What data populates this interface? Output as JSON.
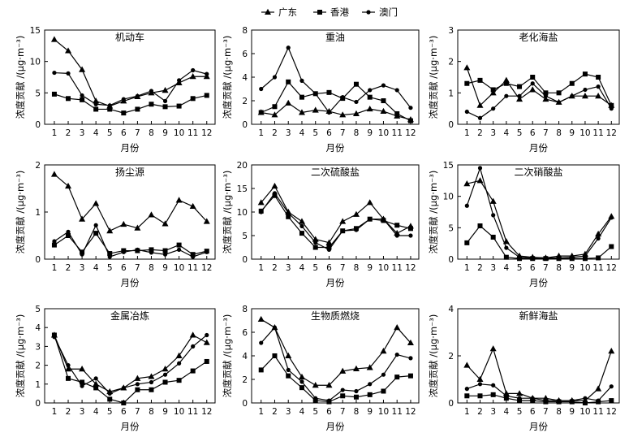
{
  "legend": [
    {
      "name": "广东",
      "marker": "triangle"
    },
    {
      "name": "香港",
      "marker": "square"
    },
    {
      "name": "澳门",
      "marker": "circle"
    }
  ],
  "chart_data": [
    {
      "type": "line",
      "title": "机动车",
      "xlabel": "月份",
      "ylabel": "浓度贡献 /(μg·m⁻³)",
      "ylim": [
        0,
        15
      ],
      "yticks": [
        0,
        5,
        10,
        15
      ],
      "x": [
        1,
        2,
        3,
        4,
        5,
        6,
        7,
        8,
        9,
        10,
        11,
        12
      ],
      "series": [
        {
          "name": "广东",
          "values": [
            13.5,
            11.7,
            8.7,
            3.7,
            2.9,
            3.7,
            4.4,
            5.0,
            5.4,
            6.6,
            7.6,
            7.6
          ]
        },
        {
          "name": "香港",
          "values": [
            4.8,
            4.1,
            3.9,
            2.4,
            2.4,
            1.8,
            2.4,
            3.2,
            2.8,
            2.9,
            4.1,
            4.6
          ]
        },
        {
          "name": "澳门",
          "values": [
            8.2,
            8.1,
            4.6,
            3.2,
            3.0,
            4.0,
            4.5,
            5.3,
            3.7,
            7.0,
            8.6,
            8.0
          ]
        }
      ]
    },
    {
      "type": "line",
      "title": "重油",
      "xlabel": "月份",
      "ylabel": "浓度贡献 /(μg·m⁻³)",
      "ylim": [
        0,
        8
      ],
      "yticks": [
        0,
        2,
        4,
        6,
        8
      ],
      "x": [
        1,
        2,
        3,
        4,
        5,
        6,
        7,
        8,
        9,
        10,
        11,
        12
      ],
      "series": [
        {
          "name": "广东",
          "values": [
            1.0,
            0.8,
            1.8,
            1.0,
            1.2,
            1.1,
            0.8,
            0.9,
            1.3,
            1.1,
            0.7,
            0.4
          ]
        },
        {
          "name": "香港",
          "values": [
            1.0,
            1.5,
            3.6,
            2.3,
            2.6,
            2.7,
            2.2,
            3.4,
            2.3,
            2.0,
            0.9,
            0.3
          ]
        },
        {
          "name": "澳门",
          "values": [
            3.0,
            4.0,
            6.5,
            3.7,
            2.6,
            1.0,
            2.3,
            1.9,
            2.9,
            3.3,
            2.9,
            1.4
          ]
        }
      ]
    },
    {
      "type": "line",
      "title": "老化海盐",
      "xlabel": "月份",
      "ylabel": "浓度贡献 /(μg·m⁻³)",
      "ylim": [
        0,
        3
      ],
      "yticks": [
        0,
        1,
        2,
        3
      ],
      "x": [
        1,
        2,
        3,
        4,
        5,
        6,
        7,
        8,
        9,
        10,
        11,
        12
      ],
      "series": [
        {
          "name": "广东",
          "values": [
            1.8,
            0.6,
            1.0,
            1.4,
            0.8,
            1.1,
            0.8,
            0.7,
            0.9,
            0.9,
            0.9,
            0.6
          ]
        },
        {
          "name": "香港",
          "values": [
            1.3,
            1.4,
            1.1,
            1.3,
            1.2,
            1.5,
            1.0,
            1.0,
            1.3,
            1.6,
            1.5,
            0.6
          ]
        },
        {
          "name": "澳门",
          "values": [
            0.4,
            0.2,
            0.5,
            0.9,
            0.9,
            1.3,
            0.9,
            0.7,
            0.9,
            1.1,
            1.2,
            0.5
          ]
        }
      ]
    },
    {
      "type": "line",
      "title": "扬尘源",
      "xlabel": "月份",
      "ylabel": "浓度贡献 /(μg·m⁻³)",
      "ylim": [
        0,
        2
      ],
      "yticks": [
        0,
        1,
        2
      ],
      "x": [
        1,
        2,
        3,
        4,
        5,
        6,
        7,
        8,
        9,
        10,
        11,
        12
      ],
      "series": [
        {
          "name": "广东",
          "values": [
            1.8,
            1.55,
            0.85,
            1.18,
            0.6,
            0.74,
            0.66,
            0.94,
            0.75,
            1.25,
            1.12,
            0.8
          ]
        },
        {
          "name": "香港",
          "values": [
            0.3,
            0.5,
            0.15,
            0.55,
            0.12,
            0.18,
            0.18,
            0.2,
            0.18,
            0.3,
            0.1,
            0.17
          ]
        },
        {
          "name": "澳门",
          "values": [
            0.38,
            0.58,
            0.1,
            0.72,
            0.05,
            0.15,
            0.2,
            0.14,
            0.1,
            0.2,
            0.05,
            0.15
          ]
        }
      ]
    },
    {
      "type": "line",
      "title": "二次硫酸盐",
      "xlabel": "月份",
      "ylabel": "浓度贡献 /(μg·m⁻³)",
      "ylim": [
        0,
        20
      ],
      "yticks": [
        0,
        5,
        10,
        15,
        20
      ],
      "x": [
        1,
        2,
        3,
        4,
        5,
        6,
        7,
        8,
        9,
        10,
        11,
        12
      ],
      "series": [
        {
          "name": "广东",
          "values": [
            12.0,
            15.5,
            10.0,
            8.0,
            4.2,
            3.5,
            8.0,
            9.5,
            12.0,
            8.5,
            5.5,
            7.0
          ]
        },
        {
          "name": "香港",
          "values": [
            10.2,
            13.5,
            9.0,
            5.5,
            2.5,
            2.5,
            6.0,
            6.5,
            8.5,
            8.2,
            7.2,
            6.5
          ]
        },
        {
          "name": "澳门",
          "values": [
            10.0,
            14.0,
            9.8,
            7.0,
            3.5,
            2.0,
            6.0,
            6.2,
            8.5,
            8.5,
            5.0,
            5.0
          ]
        }
      ]
    },
    {
      "type": "line",
      "title": "二次硝酸盐",
      "xlabel": "月份",
      "ylabel": "浓度贡献 /(μg·m⁻³)",
      "ylim": [
        0,
        15
      ],
      "yticks": [
        0,
        5,
        10,
        15
      ],
      "x": [
        1,
        2,
        3,
        4,
        5,
        6,
        7,
        8,
        9,
        10,
        11,
        12
      ],
      "series": [
        {
          "name": "广东",
          "values": [
            12.0,
            12.5,
            9.2,
            2.8,
            0.5,
            0.3,
            0.2,
            0.5,
            0.5,
            0.8,
            4.0,
            6.8
          ]
        },
        {
          "name": "香港",
          "values": [
            2.6,
            5.3,
            3.5,
            0.3,
            0.1,
            0.1,
            0.1,
            0.1,
            0.1,
            0.1,
            0.2,
            2.0
          ]
        },
        {
          "name": "澳门",
          "values": [
            8.5,
            14.5,
            7.0,
            1.8,
            0.3,
            0.2,
            0.2,
            0.2,
            0.3,
            0.5,
            3.3,
            6.6
          ]
        }
      ]
    },
    {
      "type": "line",
      "title": "金属冶炼",
      "xlabel": "月份",
      "ylabel": "浓度贡献 /(μg·m⁻³)",
      "ylim": [
        0,
        5
      ],
      "yticks": [
        0,
        1,
        2,
        3,
        4,
        5
      ],
      "x": [
        1,
        2,
        3,
        4,
        5,
        6,
        7,
        8,
        9,
        10,
        11,
        12
      ],
      "series": [
        {
          "name": "广东",
          "values": [
            3.6,
            1.8,
            1.8,
            1.0,
            0.6,
            0.8,
            1.3,
            1.4,
            1.8,
            2.5,
            3.6,
            3.2
          ]
        },
        {
          "name": "香港",
          "values": [
            3.6,
            1.3,
            1.1,
            0.8,
            0.2,
            0.0,
            0.7,
            0.7,
            1.1,
            1.2,
            1.7,
            2.2
          ]
        },
        {
          "name": "澳门",
          "values": [
            3.5,
            2.0,
            0.9,
            1.3,
            0.5,
            0.8,
            1.0,
            1.1,
            1.5,
            2.1,
            3.0,
            3.6
          ]
        }
      ]
    },
    {
      "type": "line",
      "title": "生物质燃烧",
      "xlabel": "月份",
      "ylabel": "浓度贡献 /(μg·m⁻³)",
      "ylim": [
        0,
        8
      ],
      "yticks": [
        0,
        2,
        4,
        6,
        8
      ],
      "x": [
        1,
        2,
        3,
        4,
        5,
        6,
        7,
        8,
        9,
        10,
        11,
        12
      ],
      "series": [
        {
          "name": "广东",
          "values": [
            7.1,
            6.4,
            4.0,
            2.2,
            1.5,
            1.5,
            2.7,
            2.9,
            3.0,
            4.4,
            6.4,
            5.1
          ]
        },
        {
          "name": "香港",
          "values": [
            2.8,
            4.0,
            2.3,
            1.3,
            0.2,
            0.1,
            0.6,
            0.5,
            0.7,
            1.0,
            2.2,
            2.3
          ]
        },
        {
          "name": "澳门",
          "values": [
            5.1,
            6.4,
            2.8,
            1.8,
            0.4,
            0.2,
            1.1,
            1.0,
            1.6,
            2.4,
            4.1,
            3.8
          ]
        }
      ]
    },
    {
      "type": "line",
      "title": "新鲜海盐",
      "xlabel": "月份",
      "ylabel": "浓度贡献 /(μg·m⁻³)",
      "ylim": [
        0,
        4
      ],
      "yticks": [
        0,
        2,
        4
      ],
      "x": [
        1,
        2,
        3,
        4,
        5,
        6,
        7,
        8,
        9,
        10,
        11,
        12
      ],
      "series": [
        {
          "name": "广东",
          "values": [
            1.6,
            1.0,
            2.3,
            0.4,
            0.4,
            0.2,
            0.2,
            0.1,
            0.1,
            0.1,
            0.6,
            2.2
          ]
        },
        {
          "name": "香港",
          "values": [
            0.3,
            0.3,
            0.35,
            0.2,
            0.1,
            0.1,
            0.05,
            0.05,
            0.05,
            0.0,
            0.05,
            0.1
          ]
        },
        {
          "name": "澳门",
          "values": [
            0.6,
            0.8,
            0.75,
            0.3,
            0.2,
            0.2,
            0.1,
            0.1,
            0.1,
            0.2,
            0.1,
            0.7
          ]
        }
      ]
    }
  ]
}
